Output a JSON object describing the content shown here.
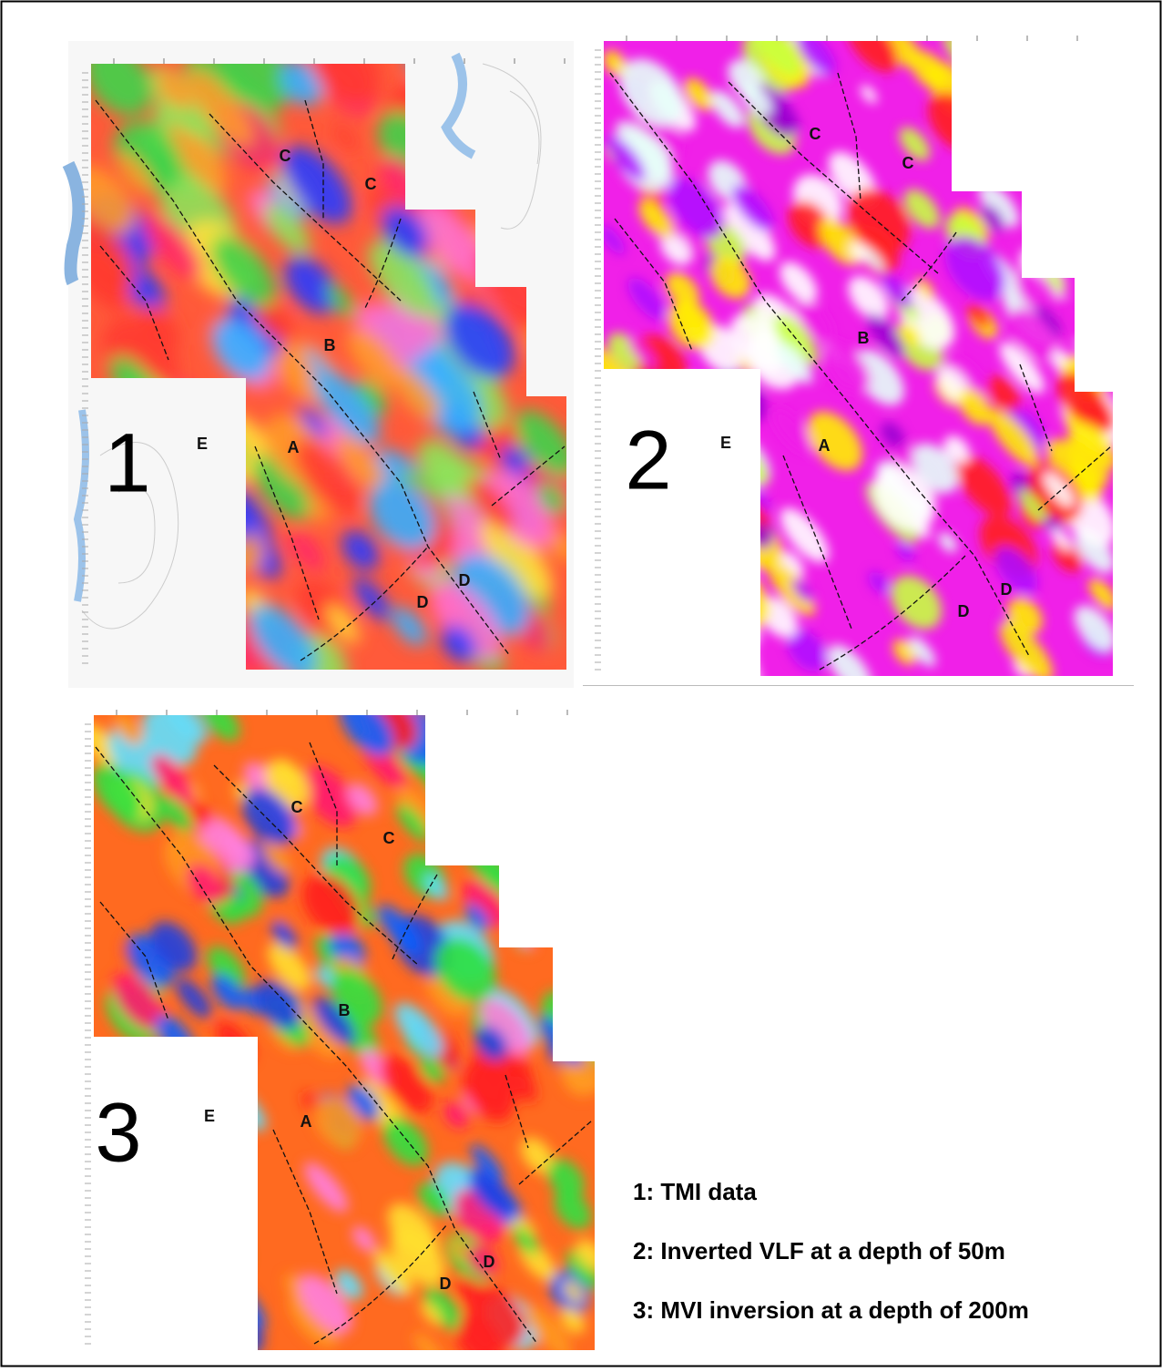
{
  "panels": [
    {
      "number": "1",
      "labels": [
        "C",
        "C",
        "B",
        "A",
        "D",
        "D",
        "E"
      ]
    },
    {
      "number": "2",
      "labels": [
        "C",
        "C",
        "B",
        "A",
        "D",
        "D",
        "E"
      ]
    },
    {
      "number": "3",
      "labels": [
        "C",
        "C",
        "B",
        "A",
        "D",
        "D",
        "E"
      ]
    }
  ],
  "legend": [
    "1: TMI data",
    "2: Inverted VLF at a depth of 50m",
    "3: MVI inversion at a depth of 200m"
  ]
}
